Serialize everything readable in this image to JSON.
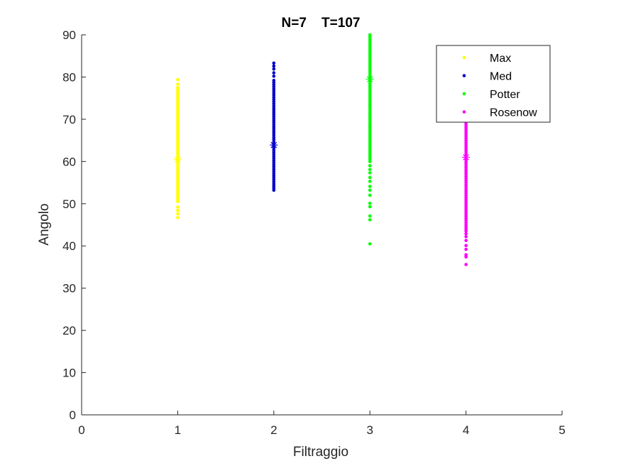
{
  "chart_data": {
    "type": "scatter",
    "title": "N=7    T=107",
    "xlabel": "Filtraggio",
    "ylabel": "Angolo",
    "xlim": [
      0,
      5
    ],
    "ylim": [
      0,
      90
    ],
    "xticks": [
      0,
      1,
      2,
      3,
      4,
      5
    ],
    "yticks": [
      0,
      10,
      20,
      30,
      40,
      50,
      60,
      70,
      80,
      90
    ],
    "grid": false,
    "legend_position": "top-right",
    "series": [
      {
        "name": "Max",
        "color": "#ffff00",
        "x": 1,
        "min": 46.7,
        "max": 79.4,
        "dense_range": [
          50.5,
          77.5
        ],
        "outliers": [
          46.7,
          47.6,
          48.4,
          49.2,
          78.3,
          79.4
        ],
        "marker": {
          "x": 1,
          "y": 60.5,
          "symbol": "asterisk"
        }
      },
      {
        "name": "Med",
        "color": "#0000cc",
        "x": 2,
        "min": 53.2,
        "max": 83.3,
        "dense_range": [
          53.2,
          79.5
        ],
        "outliers": [
          80.2,
          81.0,
          81.9,
          82.6,
          83.3
        ],
        "marker": {
          "x": 2,
          "y": 63.9,
          "symbol": "asterisk"
        }
      },
      {
        "name": "Potter",
        "color": "#00ff00",
        "x": 3,
        "min": 40.5,
        "max": 90,
        "dense_range": [
          60,
          90
        ],
        "outliers": [
          40.5,
          46.2,
          47.1,
          49.3,
          50.1,
          52.0,
          53.2,
          54.1,
          55.3,
          56.2,
          57.3,
          58.1,
          59.0
        ],
        "marker": {
          "x": 3,
          "y": 79.5,
          "symbol": "asterisk"
        }
      },
      {
        "name": "Rosenow",
        "color": "#ff00ff",
        "x": 4,
        "min": 35.6,
        "max": 70,
        "dense_range": [
          43.5,
          70
        ],
        "outliers": [
          35.6,
          37.4,
          37.9,
          39.2,
          40.1,
          41.3,
          42.2,
          42.9
        ],
        "marker": {
          "x": 4,
          "y": 61.0,
          "symbol": "asterisk"
        }
      }
    ]
  }
}
